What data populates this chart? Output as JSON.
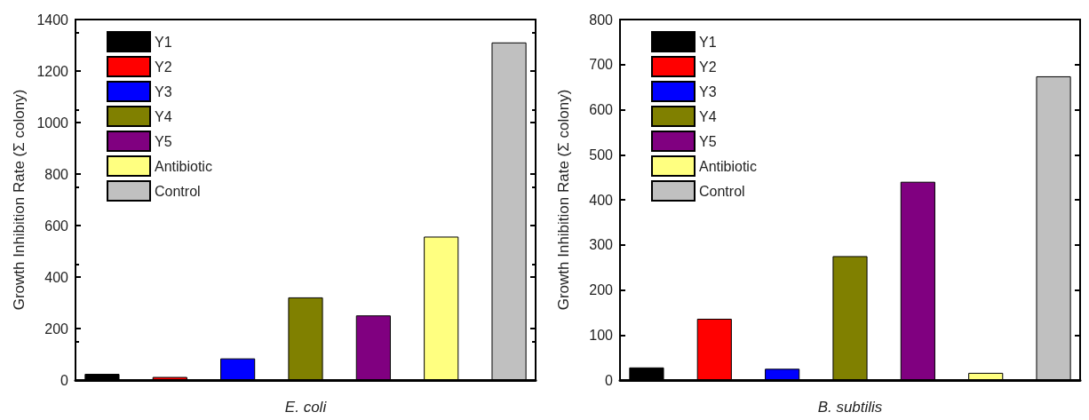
{
  "chart_data": [
    {
      "type": "bar",
      "xlabel": "E. coli",
      "ylabel": "Growth Inhibition Rate (Σ colony)",
      "categories": [
        null
      ],
      "ylim": [
        0,
        1400
      ],
      "yticks": [
        0,
        200,
        400,
        600,
        800,
        1000,
        1200,
        1400
      ],
      "legend": "top left",
      "grid": false,
      "series": [
        {
          "name": "Y1",
          "color": "#000000",
          "values": [
            24
          ]
        },
        {
          "name": "Y2",
          "color": "#ff0000",
          "values": [
            12
          ]
        },
        {
          "name": "Y3",
          "color": "#0000ff",
          "values": [
            84
          ]
        },
        {
          "name": "Y4",
          "color": "#808000",
          "values": [
            321
          ]
        },
        {
          "name": "Y5",
          "color": "#800080",
          "values": [
            251
          ]
        },
        {
          "name": "Antibiotic",
          "color": "#ffff80",
          "values": [
            557
          ]
        },
        {
          "name": "Control",
          "color": "#c0c0c0",
          "values": [
            1311
          ]
        }
      ]
    },
    {
      "type": "bar",
      "xlabel": "B. subtilis",
      "ylabel": "Growth Inhibition Rate (Σ colony)",
      "categories": [
        null
      ],
      "ylim": [
        0,
        800
      ],
      "yticks": [
        0,
        100,
        200,
        300,
        400,
        500,
        600,
        700,
        800
      ],
      "legend": "top left",
      "grid": false,
      "series": [
        {
          "name": "Y1",
          "color": "#000000",
          "values": [
            28
          ]
        },
        {
          "name": "Y2",
          "color": "#ff0000",
          "values": [
            136
          ]
        },
        {
          "name": "Y3",
          "color": "#0000ff",
          "values": [
            25
          ]
        },
        {
          "name": "Y4",
          "color": "#808000",
          "values": [
            275
          ]
        },
        {
          "name": "Y5",
          "color": "#800080",
          "values": [
            440
          ]
        },
        {
          "name": "Antibiotic",
          "color": "#ffff80",
          "values": [
            16
          ]
        },
        {
          "name": "Control",
          "color": "#c0c0c0",
          "values": [
            674
          ]
        }
      ]
    }
  ]
}
